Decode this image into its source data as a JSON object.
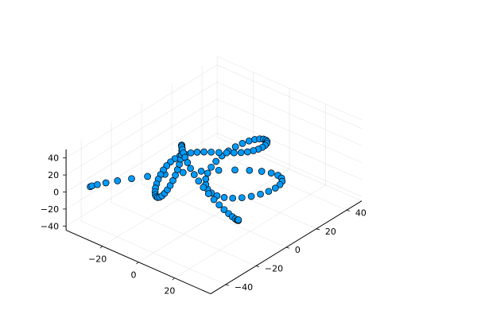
{
  "chart_data": {
    "type": "scatter",
    "title": "",
    "xlabel": "",
    "ylabel": "",
    "zlabel": "",
    "projection": "3d",
    "grid": true,
    "legend": "none",
    "marker_color": "#009af9",
    "marker_edge_color": "#000000",
    "xlim": [
      -40,
      40
    ],
    "ylim": [
      -50,
      50
    ],
    "zlim": [
      -45,
      50
    ],
    "xticks": [
      -20,
      0,
      20
    ],
    "yticks": [
      -40,
      -20,
      0,
      20,
      40
    ],
    "zticks": [
      -40,
      -20,
      0,
      20,
      40
    ],
    "xtick_labels": [
      "−20",
      "0",
      "20"
    ],
    "ytick_labels": [
      "−40",
      "−20",
      "0",
      "20",
      "40"
    ],
    "ztick_labels": [
      "−40",
      "−20",
      "0",
      "20",
      "40"
    ],
    "series": [
      {
        "x": [
          -35.0,
          -34.56,
          -33.25,
          -31.1,
          -28.17,
          -24.53,
          -20.27,
          -15.52,
          -10.41,
          -5.1,
          0.24,
          5.46,
          10.41,
          14.94,
          18.92,
          22.25,
          24.83,
          26.62,
          27.57,
          27.7,
          27.05,
          25.67,
          23.64,
          21.07,
          18.05,
          14.72,
          11.21,
          7.65,
          4.16,
          0.86,
          -2.13,
          -4.72,
          -6.85,
          -8.43,
          -9.44,
          -9.86,
          -9.73,
          -9.11,
          -8.05,
          -6.65,
          -5.01,
          -3.23,
          -1.43,
          0.3,
          1.85,
          3.14,
          4.1,
          4.67,
          4.82,
          4.55,
          3.88,
          2.86,
          1.54,
          0.0,
          -1.54,
          -2.86,
          -3.88,
          -4.55,
          -4.82,
          -4.67,
          -4.1,
          -3.14,
          -1.85,
          -0.3,
          1.43,
          3.23,
          5.01,
          6.65,
          8.05,
          9.11,
          9.73,
          9.86,
          9.44,
          8.43,
          6.85,
          4.72,
          2.13,
          -0.86,
          -4.16,
          -7.65,
          -11.21,
          -14.72,
          -18.05,
          -21.07,
          -23.64,
          -25.67,
          -27.05,
          -27.7,
          -27.57,
          -26.62,
          -24.83,
          -22.25,
          -18.92,
          -14.94,
          -10.41,
          -5.46,
          -0.24,
          5.1,
          10.41,
          15.52,
          20.27,
          24.53,
          28.17,
          31.1,
          33.25,
          34.56,
          35.0
        ],
        "y": [
          -40.0,
          -39.34,
          -37.4,
          -34.27,
          -30.12,
          -25.16,
          -19.63,
          -13.8,
          -7.94,
          -2.29,
          2.91,
          7.44,
          11.12,
          13.8,
          15.37,
          15.8,
          15.1,
          13.37,
          10.79,
          7.55,
          3.91,
          0.14,
          -3.46,
          -6.63,
          -9.13,
          -10.75,
          -11.33,
          -10.8,
          -9.13,
          -6.42,
          -2.8,
          1.54,
          6.39,
          11.49,
          16.61,
          21.5,
          25.96,
          29.79,
          32.87,
          35.08,
          36.37,
          36.73,
          36.2,
          34.86,
          32.82,
          30.21,
          27.18,
          23.86,
          20.38,
          16.85,
          13.35,
          9.92,
          6.58,
          3.32,
          0.1,
          -3.12,
          -6.4,
          -9.79,
          -13.33,
          -17.04,
          -20.91,
          -24.91,
          -28.99,
          -33.05,
          -36.98,
          -40.64,
          -43.88,
          -46.56,
          -48.51,
          -49.62,
          -49.8,
          -48.99,
          -47.18,
          -44.42,
          -40.79,
          -36.41,
          -31.45,
          -26.07,
          -20.48,
          -14.88,
          -9.46,
          -4.41,
          0.12,
          4.01,
          7.16,
          9.52,
          11.05,
          11.77,
          11.71,
          10.93,
          9.51,
          7.54,
          5.13,
          2.39,
          -0.55,
          -3.6,
          -6.65,
          -9.61,
          -12.42,
          -15.04,
          -17.43,
          -19.56,
          -21.42,
          -22.97,
          -24.21,
          -25.11,
          -25.64
        ],
        "z": [
          0.0,
          0.62,
          1.24,
          1.85,
          2.45,
          3.02,
          3.57,
          4.07,
          4.53,
          4.93,
          5.27,
          5.54,
          5.74,
          5.86,
          5.91,
          5.87,
          5.74,
          5.53,
          5.25,
          4.89,
          4.47,
          3.99,
          3.47,
          2.91,
          2.33,
          1.74,
          1.15,
          0.58,
          0.04,
          -0.45,
          -0.89,
          -1.26,
          -1.55,
          -1.74,
          -1.82,
          -1.78,
          -1.6,
          -1.28,
          -0.8,
          -0.15,
          0.67,
          1.67,
          2.85,
          4.21,
          5.75,
          7.46,
          9.33,
          11.35,
          13.5,
          15.77,
          18.14,
          20.58,
          23.06,
          25.57,
          28.06,
          30.51,
          32.88,
          35.14,
          37.25,
          39.18,
          40.89,
          42.35,
          43.52,
          44.38,
          44.91,
          45.1,
          44.94,
          44.43,
          43.57,
          42.38,
          40.87,
          39.07,
          37.01,
          34.71,
          32.21,
          29.55,
          26.76,
          23.89,
          20.97,
          18.05,
          15.16,
          12.34,
          9.63,
          7.06,
          4.66,
          2.46,
          0.47,
          -1.27,
          -2.76,
          -3.98,
          -4.93,
          -5.6,
          -5.99,
          -6.1,
          -5.94,
          -5.52,
          -4.85,
          -3.95,
          -2.83,
          -1.51,
          -0.02,
          1.61,
          3.35,
          5.17,
          7.03,
          8.9,
          10.75
        ]
      }
    ]
  }
}
